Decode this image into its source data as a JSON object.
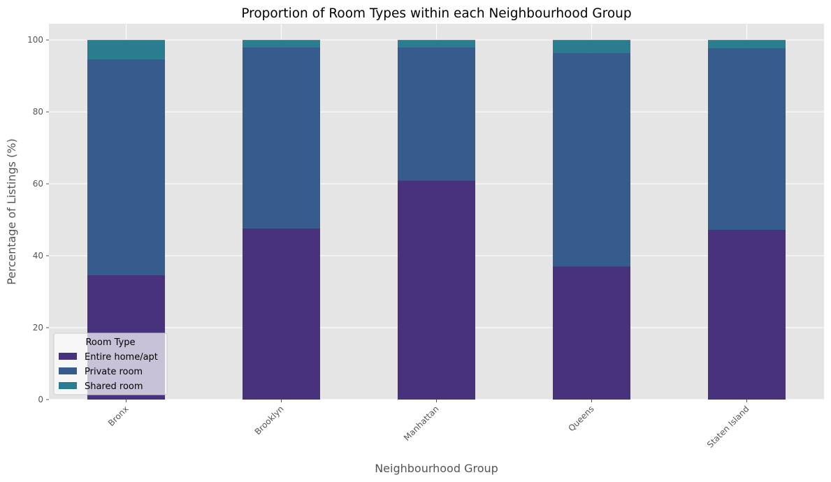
{
  "chart_data": {
    "type": "bar",
    "stacked": true,
    "title": "Proportion of Room Types within each Neighbourhood Group",
    "xlabel": "Neighbourhood Group",
    "ylabel": "Percentage of Listings (%)",
    "categories": [
      "Bronx",
      "Brooklyn",
      "Manhattan",
      "Queens",
      "Staten Island"
    ],
    "ylim": [
      0,
      104.5
    ],
    "yticks": [
      0,
      20,
      40,
      60,
      80,
      100
    ],
    "grid": true,
    "legend": {
      "title": "Room Type",
      "placement": "lower-left"
    },
    "series": [
      {
        "name": "Entire home/apt",
        "color": "#48327d",
        "values": [
          34.7,
          47.6,
          60.9,
          37.0,
          47.2
        ]
      },
      {
        "name": "Private room",
        "color": "#355c8c",
        "values": [
          59.9,
          50.3,
          37.0,
          59.5,
          50.5
        ]
      },
      {
        "name": "Shared room",
        "color": "#2a7d8e",
        "values": [
          5.4,
          2.1,
          2.1,
          3.5,
          2.3
        ]
      }
    ]
  }
}
